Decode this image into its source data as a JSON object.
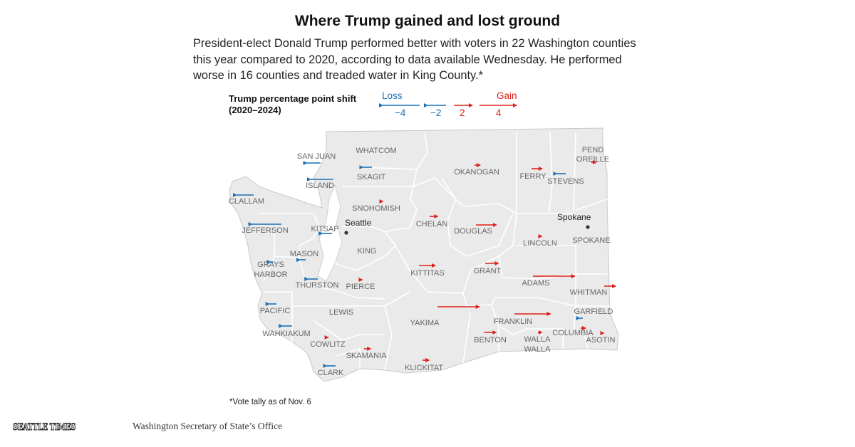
{
  "title": "Where Trump gained and lost ground",
  "subtitle": "President-elect Donald Trump performed better with voters in 22 Washington counties this year compared to 2020, according to data available Wednesday. He performed worse in 16 counties and treaded water in King County.*",
  "legend": {
    "title_line1": "Trump percentage point shift",
    "title_line2": "(2020–2024)",
    "loss_label": "Loss",
    "gain_label": "Gain",
    "loss_color": "#1a6fb5",
    "gain_color": "#e0201a",
    "entries": [
      {
        "label": "−4",
        "value": -4
      },
      {
        "label": "−2",
        "value": -2
      },
      {
        "label": "2",
        "value": 2
      },
      {
        "label": "4",
        "value": 4
      }
    ]
  },
  "map_colors": {
    "land": "#eaeaea",
    "border": "#ffffff",
    "outline": "#c8c8c8",
    "label": "#666666",
    "water": "#ffffff"
  },
  "counties": [
    {
      "name": "WHATCOM",
      "shift": null
    },
    {
      "name": "SAN JUAN",
      "shift": -1.7
    },
    {
      "name": "SKAGIT",
      "shift": -1.1
    },
    {
      "name": "OKANOGAN",
      "shift": 0.7
    },
    {
      "name": "FERRY",
      "shift": 1.3
    },
    {
      "name": "STEVENS",
      "shift": -1.1
    },
    {
      "name": "PEND OREILLE",
      "shift": 0.6
    },
    {
      "name": "ISLAND",
      "shift": -2.8
    },
    {
      "name": "CLALLAM",
      "shift": -2.1
    },
    {
      "name": "SNOHOMISH",
      "shift": 0.3
    },
    {
      "name": "CHELAN",
      "shift": 1.0
    },
    {
      "name": "JEFFERSON",
      "shift": -3.6
    },
    {
      "name": "KITSAP",
      "shift": -1.2
    },
    {
      "name": "DOUGLAS",
      "shift": 2.5
    },
    {
      "name": "LINCOLN",
      "shift": 0.3
    },
    {
      "name": "SPOKANE",
      "shift": null
    },
    {
      "name": "MASON",
      "shift": -0.7
    },
    {
      "name": "KING",
      "shift": 0.0
    },
    {
      "name": "GRAYS HARBOR",
      "shift": -0.3
    },
    {
      "name": "KITTITAS",
      "shift": 2.0
    },
    {
      "name": "GRANT",
      "shift": 1.6
    },
    {
      "name": "ADAMS",
      "shift": 5.1
    },
    {
      "name": "THURSTON",
      "shift": -1.2
    },
    {
      "name": "PIERCE",
      "shift": 0.3
    },
    {
      "name": "WHITMAN",
      "shift": 1.4
    },
    {
      "name": "PACIFIC",
      "shift": -0.9
    },
    {
      "name": "LEWIS",
      "shift": null
    },
    {
      "name": "YAKIMA",
      "shift": 5.1
    },
    {
      "name": "GARFIELD",
      "shift": -0.4
    },
    {
      "name": "FRANKLIN",
      "shift": 4.4
    },
    {
      "name": "COLUMBIA",
      "shift": 0.6
    },
    {
      "name": "WAHKIAKUM",
      "shift": -1.2
    },
    {
      "name": "COWLITZ",
      "shift": 0.4
    },
    {
      "name": "BENTON",
      "shift": 1.5
    },
    {
      "name": "WALLA WALLA",
      "shift": 0.5
    },
    {
      "name": "ASOTIN",
      "shift": 0.3
    },
    {
      "name": "SKAMANIA",
      "shift": 0.8
    },
    {
      "name": "KLICKITAT",
      "shift": 0.8
    },
    {
      "name": "CLARK",
      "shift": -1.1
    }
  ],
  "cities": [
    {
      "name": "Seattle"
    },
    {
      "name": "Spokane"
    }
  ],
  "footnote": "*Vote tally as of Nov. 6",
  "logo": "SEATTLE TIMES",
  "source": "Washington Secretary of State’s Office"
}
